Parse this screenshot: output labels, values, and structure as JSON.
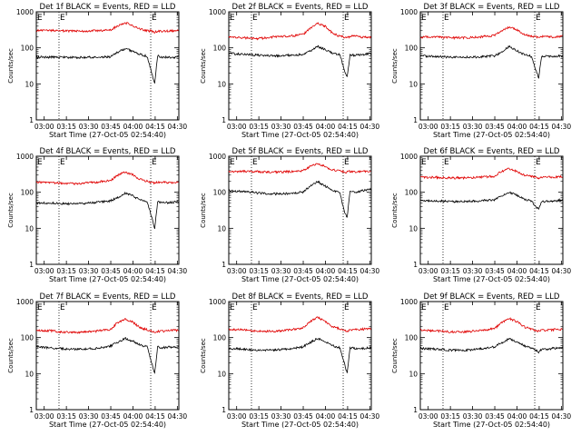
{
  "figure": {
    "background": "#ffffff",
    "colors": {
      "events": "#000000",
      "lld": "#e00000",
      "axes": "#000000"
    }
  },
  "chart_data": [
    {
      "type": "line",
      "title": "Det 1f BLACK = Events, RED = LLD",
      "xlabel": "Start Time (27-Oct-05 02:54:40)",
      "ylabel": "Counts/sec",
      "yscale": "log",
      "ylim": [
        1,
        1000
      ],
      "yticks": [
        "1",
        "10",
        "100",
        "1000"
      ],
      "xlim": [
        "02:54:40",
        "04:31:00"
      ],
      "xticks": [
        "03:00",
        "03:15",
        "03:30",
        "03:45",
        "04:00",
        "04:15",
        "04:30"
      ],
      "markers": [
        "03:10",
        "04:12"
      ],
      "marker_labels": [
        "E",
        "E"
      ],
      "grid": false,
      "series": [
        {
          "name": "Events",
          "color": "#000000",
          "t": [
            0,
            10,
            20,
            30,
            40,
            50,
            55,
            60,
            65,
            70,
            75,
            78,
            80,
            82,
            85,
            90,
            96
          ],
          "y": [
            55,
            55,
            54,
            54,
            55,
            56,
            75,
            95,
            80,
            66,
            58,
            20,
            10,
            60,
            55,
            55,
            55
          ]
        },
        {
          "name": "LLD",
          "color": "#e00000",
          "t": [
            0,
            10,
            20,
            30,
            40,
            50,
            55,
            60,
            65,
            70,
            75,
            78,
            80,
            82,
            85,
            90,
            96
          ],
          "y": [
            300,
            305,
            295,
            290,
            300,
            310,
            410,
            500,
            420,
            330,
            300,
            290,
            270,
            290,
            290,
            295,
            300
          ]
        }
      ]
    },
    {
      "type": "line",
      "title": "Det 2f BLACK = Events, RED = LLD",
      "xlabel": "Start Time (27-Oct-05 02:54:40)",
      "ylabel": "Counts/sec",
      "yscale": "log",
      "ylim": [
        1,
        1000
      ],
      "yticks": [
        "1",
        "10",
        "100",
        "1000"
      ],
      "xlim": [
        "02:54:40",
        "04:31:00"
      ],
      "xticks": [
        "03:00",
        "03:15",
        "03:30",
        "03:45",
        "04:00",
        "04:15",
        "04:30"
      ],
      "markers": [
        "03:10",
        "04:12"
      ],
      "marker_labels": [
        "E",
        "E"
      ],
      "grid": false,
      "series": [
        {
          "name": "Events",
          "color": "#000000",
          "t": [
            0,
            10,
            20,
            30,
            40,
            50,
            55,
            60,
            65,
            70,
            75,
            78,
            80,
            82,
            85,
            90,
            96
          ],
          "y": [
            70,
            66,
            62,
            60,
            62,
            65,
            80,
            110,
            90,
            72,
            66,
            25,
            15,
            65,
            62,
            65,
            70
          ]
        },
        {
          "name": "LLD",
          "color": "#e00000",
          "t": [
            0,
            10,
            20,
            30,
            40,
            50,
            55,
            60,
            65,
            70,
            75,
            78,
            80,
            82,
            85,
            90,
            96
          ],
          "y": [
            200,
            190,
            180,
            200,
            210,
            230,
            350,
            480,
            400,
            260,
            210,
            200,
            190,
            210,
            210,
            200,
            200
          ]
        }
      ]
    },
    {
      "type": "line",
      "title": "Det 3f BLACK = Events, RED = LLD",
      "xlabel": "Start Time (27-Oct-05 02:54:40)",
      "ylabel": "Counts/sec",
      "yscale": "log",
      "ylim": [
        1,
        1000
      ],
      "yticks": [
        "1",
        "10",
        "100",
        "1000"
      ],
      "xlim": [
        "02:54:40",
        "04:31:00"
      ],
      "xticks": [
        "03:00",
        "03:15",
        "03:30",
        "03:45",
        "04:00",
        "04:15",
        "04:30"
      ],
      "markers": [
        "03:10",
        "04:12"
      ],
      "marker_labels": [
        "E",
        "E"
      ],
      "grid": false,
      "series": [
        {
          "name": "Events",
          "color": "#000000",
          "t": [
            0,
            10,
            20,
            30,
            40,
            50,
            55,
            60,
            65,
            70,
            75,
            78,
            80,
            82,
            85,
            90,
            96
          ],
          "y": [
            60,
            58,
            55,
            55,
            56,
            60,
            75,
            110,
            85,
            65,
            58,
            25,
            15,
            60,
            58,
            58,
            60
          ]
        },
        {
          "name": "LLD",
          "color": "#e00000",
          "t": [
            0,
            10,
            20,
            30,
            40,
            50,
            55,
            60,
            65,
            70,
            75,
            78,
            80,
            82,
            85,
            90,
            96
          ],
          "y": [
            200,
            200,
            190,
            190,
            200,
            220,
            300,
            380,
            320,
            240,
            210,
            200,
            190,
            210,
            205,
            200,
            210
          ]
        }
      ]
    },
    {
      "type": "line",
      "title": "Det 4f BLACK = Events, RED = LLD",
      "xlabel": "Start Time (27-Oct-05 02:54:40)",
      "ylabel": "Counts/sec",
      "yscale": "log",
      "ylim": [
        1,
        1000
      ],
      "yticks": [
        "1",
        "10",
        "100",
        "1000"
      ],
      "xlim": [
        "02:54:40",
        "04:31:00"
      ],
      "xticks": [
        "03:00",
        "03:15",
        "03:30",
        "03:45",
        "04:00",
        "04:15",
        "04:30"
      ],
      "markers": [
        "03:10",
        "04:12"
      ],
      "marker_labels": [
        "E",
        "E"
      ],
      "grid": false,
      "series": [
        {
          "name": "Events",
          "color": "#000000",
          "t": [
            0,
            10,
            20,
            30,
            40,
            50,
            55,
            60,
            65,
            70,
            75,
            78,
            80,
            82,
            85,
            90,
            96
          ],
          "y": [
            50,
            50,
            48,
            48,
            52,
            58,
            70,
            95,
            80,
            62,
            55,
            20,
            10,
            55,
            52,
            52,
            55
          ]
        },
        {
          "name": "LLD",
          "color": "#e00000",
          "t": [
            0,
            10,
            20,
            30,
            40,
            50,
            55,
            60,
            65,
            70,
            75,
            78,
            80,
            82,
            85,
            90,
            96
          ],
          "y": [
            190,
            185,
            175,
            175,
            190,
            210,
            300,
            360,
            310,
            230,
            200,
            185,
            180,
            190,
            190,
            185,
            190
          ]
        }
      ]
    },
    {
      "type": "line",
      "title": "Det 5f BLACK = Events, RED = LLD",
      "xlabel": "Start Time (27-Oct-05 02:54:40)",
      "ylabel": "Counts/sec",
      "yscale": "log",
      "ylim": [
        1,
        1000
      ],
      "yticks": [
        "1",
        "10",
        "100",
        "1000"
      ],
      "xlim": [
        "02:54:40",
        "04:31:00"
      ],
      "xticks": [
        "03:00",
        "03:15",
        "03:30",
        "03:45",
        "04:00",
        "04:15",
        "04:30"
      ],
      "markers": [
        "03:10",
        "04:12"
      ],
      "marker_labels": [
        "E",
        "E"
      ],
      "grid": false,
      "series": [
        {
          "name": "Events",
          "color": "#000000",
          "t": [
            0,
            10,
            20,
            30,
            40,
            50,
            55,
            60,
            65,
            70,
            75,
            78,
            80,
            82,
            85,
            90,
            96
          ],
          "y": [
            110,
            105,
            95,
            90,
            92,
            100,
            150,
            200,
            150,
            110,
            100,
            30,
            20,
            110,
            100,
            110,
            120
          ]
        },
        {
          "name": "LLD",
          "color": "#e00000",
          "t": [
            0,
            10,
            20,
            30,
            40,
            50,
            55,
            60,
            65,
            70,
            75,
            78,
            80,
            82,
            85,
            90,
            96
          ],
          "y": [
            380,
            380,
            370,
            360,
            370,
            400,
            520,
            620,
            520,
            420,
            390,
            370,
            360,
            380,
            370,
            375,
            380
          ]
        }
      ]
    },
    {
      "type": "line",
      "title": "Det 6f BLACK = Events, RED = LLD",
      "xlabel": "Start Time (27-Oct-05 02:54:40)",
      "ylabel": "Counts/sec",
      "yscale": "log",
      "ylim": [
        1,
        1000
      ],
      "yticks": [
        "1",
        "10",
        "100",
        "1000"
      ],
      "xlim": [
        "02:54:40",
        "04:31:00"
      ],
      "xticks": [
        "03:00",
        "03:15",
        "03:30",
        "03:45",
        "04:00",
        "04:15",
        "04:30"
      ],
      "markers": [
        "03:10",
        "04:12"
      ],
      "marker_labels": [
        "E",
        "E"
      ],
      "grid": false,
      "series": [
        {
          "name": "Events",
          "color": "#000000",
          "t": [
            0,
            10,
            20,
            30,
            40,
            50,
            55,
            60,
            65,
            70,
            75,
            78,
            80,
            82,
            85,
            90,
            96
          ],
          "y": [
            60,
            58,
            55,
            55,
            58,
            62,
            80,
            100,
            85,
            65,
            58,
            40,
            35,
            55,
            55,
            58,
            60
          ]
        },
        {
          "name": "LLD",
          "color": "#e00000",
          "t": [
            0,
            10,
            20,
            30,
            40,
            50,
            55,
            60,
            65,
            70,
            75,
            78,
            80,
            82,
            85,
            90,
            96
          ],
          "y": [
            260,
            260,
            250,
            250,
            260,
            280,
            380,
            450,
            380,
            300,
            270,
            260,
            250,
            255,
            260,
            265,
            270
          ]
        }
      ]
    },
    {
      "type": "line",
      "title": "Det 7f BLACK = Events, RED = LLD",
      "xlabel": "Start Time (27-Oct-05 02:54:40)",
      "ylabel": "Counts/sec",
      "yscale": "log",
      "ylim": [
        1,
        1000
      ],
      "yticks": [
        "1",
        "10",
        "100",
        "1000"
      ],
      "xlim": [
        "02:54:40",
        "04:31:00"
      ],
      "xticks": [
        "03:00",
        "03:15",
        "03:30",
        "03:45",
        "04:00",
        "04:15",
        "04:30"
      ],
      "markers": [
        "03:10",
        "04:12"
      ],
      "marker_labels": [
        "E",
        "E"
      ],
      "grid": false,
      "series": [
        {
          "name": "Events",
          "color": "#000000",
          "t": [
            0,
            10,
            20,
            30,
            40,
            50,
            55,
            60,
            65,
            70,
            75,
            78,
            80,
            82,
            85,
            90,
            96
          ],
          "y": [
            55,
            52,
            48,
            48,
            50,
            58,
            75,
            95,
            80,
            62,
            55,
            20,
            10,
            55,
            52,
            55,
            55
          ]
        },
        {
          "name": "LLD",
          "color": "#e00000",
          "t": [
            0,
            10,
            20,
            30,
            40,
            50,
            55,
            60,
            65,
            70,
            75,
            78,
            80,
            82,
            85,
            90,
            96
          ],
          "y": [
            160,
            155,
            140,
            140,
            150,
            170,
            260,
            330,
            270,
            190,
            165,
            150,
            140,
            150,
            150,
            155,
            160
          ]
        }
      ]
    },
    {
      "type": "line",
      "title": "Det 8f BLACK = Events, RED = LLD",
      "xlabel": "Start Time (27-Oct-05 02:54:40)",
      "ylabel": "Counts/sec",
      "yscale": "log",
      "ylim": [
        1,
        1000
      ],
      "yticks": [
        "1",
        "10",
        "100",
        "1000"
      ],
      "xlim": [
        "02:54:40",
        "04:31:00"
      ],
      "xticks": [
        "03:00",
        "03:15",
        "03:30",
        "03:45",
        "04:00",
        "04:15",
        "04:30"
      ],
      "markers": [
        "03:10",
        "04:12"
      ],
      "marker_labels": [
        "E",
        "E"
      ],
      "grid": false,
      "series": [
        {
          "name": "Events",
          "color": "#000000",
          "t": [
            0,
            10,
            20,
            30,
            40,
            50,
            55,
            60,
            65,
            70,
            75,
            78,
            80,
            82,
            85,
            90,
            96
          ],
          "y": [
            50,
            48,
            45,
            45,
            48,
            55,
            72,
            95,
            78,
            60,
            52,
            20,
            10,
            52,
            50,
            50,
            52
          ]
        },
        {
          "name": "LLD",
          "color": "#e00000",
          "t": [
            0,
            10,
            20,
            30,
            40,
            50,
            55,
            60,
            65,
            70,
            75,
            78,
            80,
            82,
            85,
            90,
            96
          ],
          "y": [
            170,
            165,
            150,
            150,
            160,
            185,
            280,
            360,
            290,
            200,
            175,
            160,
            150,
            165,
            165,
            170,
            175
          ]
        }
      ]
    },
    {
      "type": "line",
      "title": "Det 9f BLACK = Events, RED = LLD",
      "xlabel": "Start Time (27-Oct-05 02:54:40)",
      "ylabel": "Counts/sec",
      "yscale": "log",
      "ylim": [
        1,
        1000
      ],
      "yticks": [
        "1",
        "10",
        "100",
        "1000"
      ],
      "xlim": [
        "02:54:40",
        "04:31:00"
      ],
      "xticks": [
        "03:00",
        "03:15",
        "03:30",
        "03:45",
        "04:00",
        "04:15",
        "04:30"
      ],
      "markers": [
        "03:10",
        "04:12"
      ],
      "marker_labels": [
        "E",
        "E"
      ],
      "grid": false,
      "series": [
        {
          "name": "Events",
          "color": "#000000",
          "t": [
            0,
            10,
            20,
            30,
            40,
            50,
            55,
            60,
            65,
            70,
            75,
            78,
            80,
            82,
            85,
            90,
            96
          ],
          "y": [
            50,
            48,
            45,
            45,
            48,
            55,
            72,
            92,
            78,
            60,
            52,
            45,
            40,
            48,
            48,
            50,
            52
          ]
        },
        {
          "name": "LLD",
          "color": "#e00000",
          "t": [
            0,
            10,
            20,
            30,
            40,
            50,
            55,
            60,
            65,
            70,
            75,
            78,
            80,
            82,
            85,
            90,
            96
          ],
          "y": [
            160,
            155,
            145,
            145,
            155,
            175,
            260,
            340,
            280,
            200,
            170,
            160,
            150,
            160,
            160,
            165,
            170
          ]
        }
      ]
    }
  ]
}
